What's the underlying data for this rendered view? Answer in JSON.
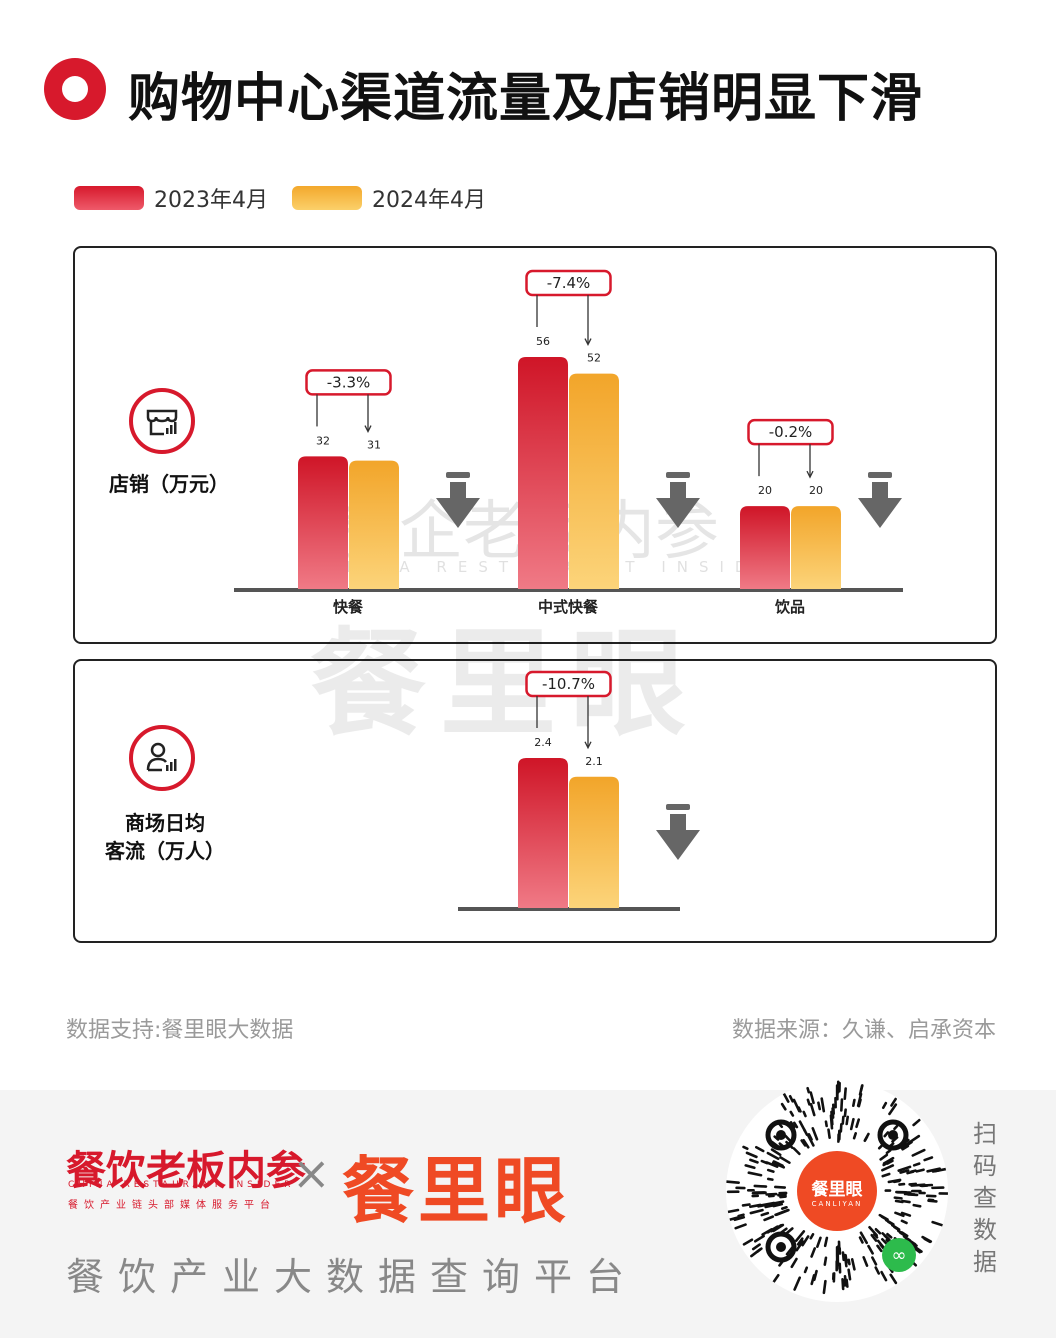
{
  "title": "购物中心渠道流量及店销明显下滑",
  "legend": [
    {
      "label": "2023年4月",
      "color": "#d7192c"
    },
    {
      "label": "2024年4月",
      "color": "#f3a82c"
    }
  ],
  "panels": {
    "sales": {
      "label": "店销（万元）",
      "icon": "store-sales-icon"
    },
    "traffic": {
      "label_line1": "商场日均",
      "label_line2": "客流（万人）",
      "icon": "person-chart-icon"
    }
  },
  "chart_data": [
    {
      "type": "bar",
      "ylabel": "店销（万元）",
      "categories": [
        "快餐",
        "中式快餐",
        "饮品"
      ],
      "series": [
        {
          "name": "2023年4月",
          "values": [
            32,
            56,
            20
          ]
        },
        {
          "name": "2024年4月",
          "values": [
            31,
            52,
            20
          ]
        }
      ],
      "data_labels": [
        [
          "32",
          "31"
        ],
        [
          "56",
          "52"
        ],
        [
          "20",
          "20"
        ]
      ],
      "changes": [
        "-3.3%",
        "-7.4%",
        "-0.2%"
      ],
      "ylim": [
        0,
        60
      ],
      "grid": false,
      "legend": "top-left"
    },
    {
      "type": "bar",
      "ylabel": "商场日均客流（万人）",
      "categories": [
        ""
      ],
      "series": [
        {
          "name": "2023年4月",
          "values": [
            2.4
          ]
        },
        {
          "name": "2024年4月",
          "values": [
            2.1
          ]
        }
      ],
      "data_labels": [
        [
          "2.4",
          "2.1"
        ]
      ],
      "changes": [
        "-10.7%"
      ],
      "ylim": [
        0,
        2.7
      ],
      "grid": false,
      "legend": "top-left"
    }
  ],
  "watermark": {
    "top": "餐企老板内参",
    "en": "CHINA RESTAURANT INSIDER",
    "big": "餐里眼"
  },
  "footer": {
    "support": "数据支持:餐里眼大数据",
    "source": "数据来源：久谦、启承资本"
  },
  "brand": {
    "left_name": "餐饮老板内参",
    "left_en": "CHINA RESTAURANT INSIDER",
    "left_sub": "餐饮产业链头部媒体服务平台",
    "times": "×",
    "right_name": "餐里眼",
    "tagline": "餐饮产业大数据查询平台",
    "qr_center": "餐里眼",
    "qr_center_en": "CANLIYAN",
    "scan": "扫码查数据"
  }
}
